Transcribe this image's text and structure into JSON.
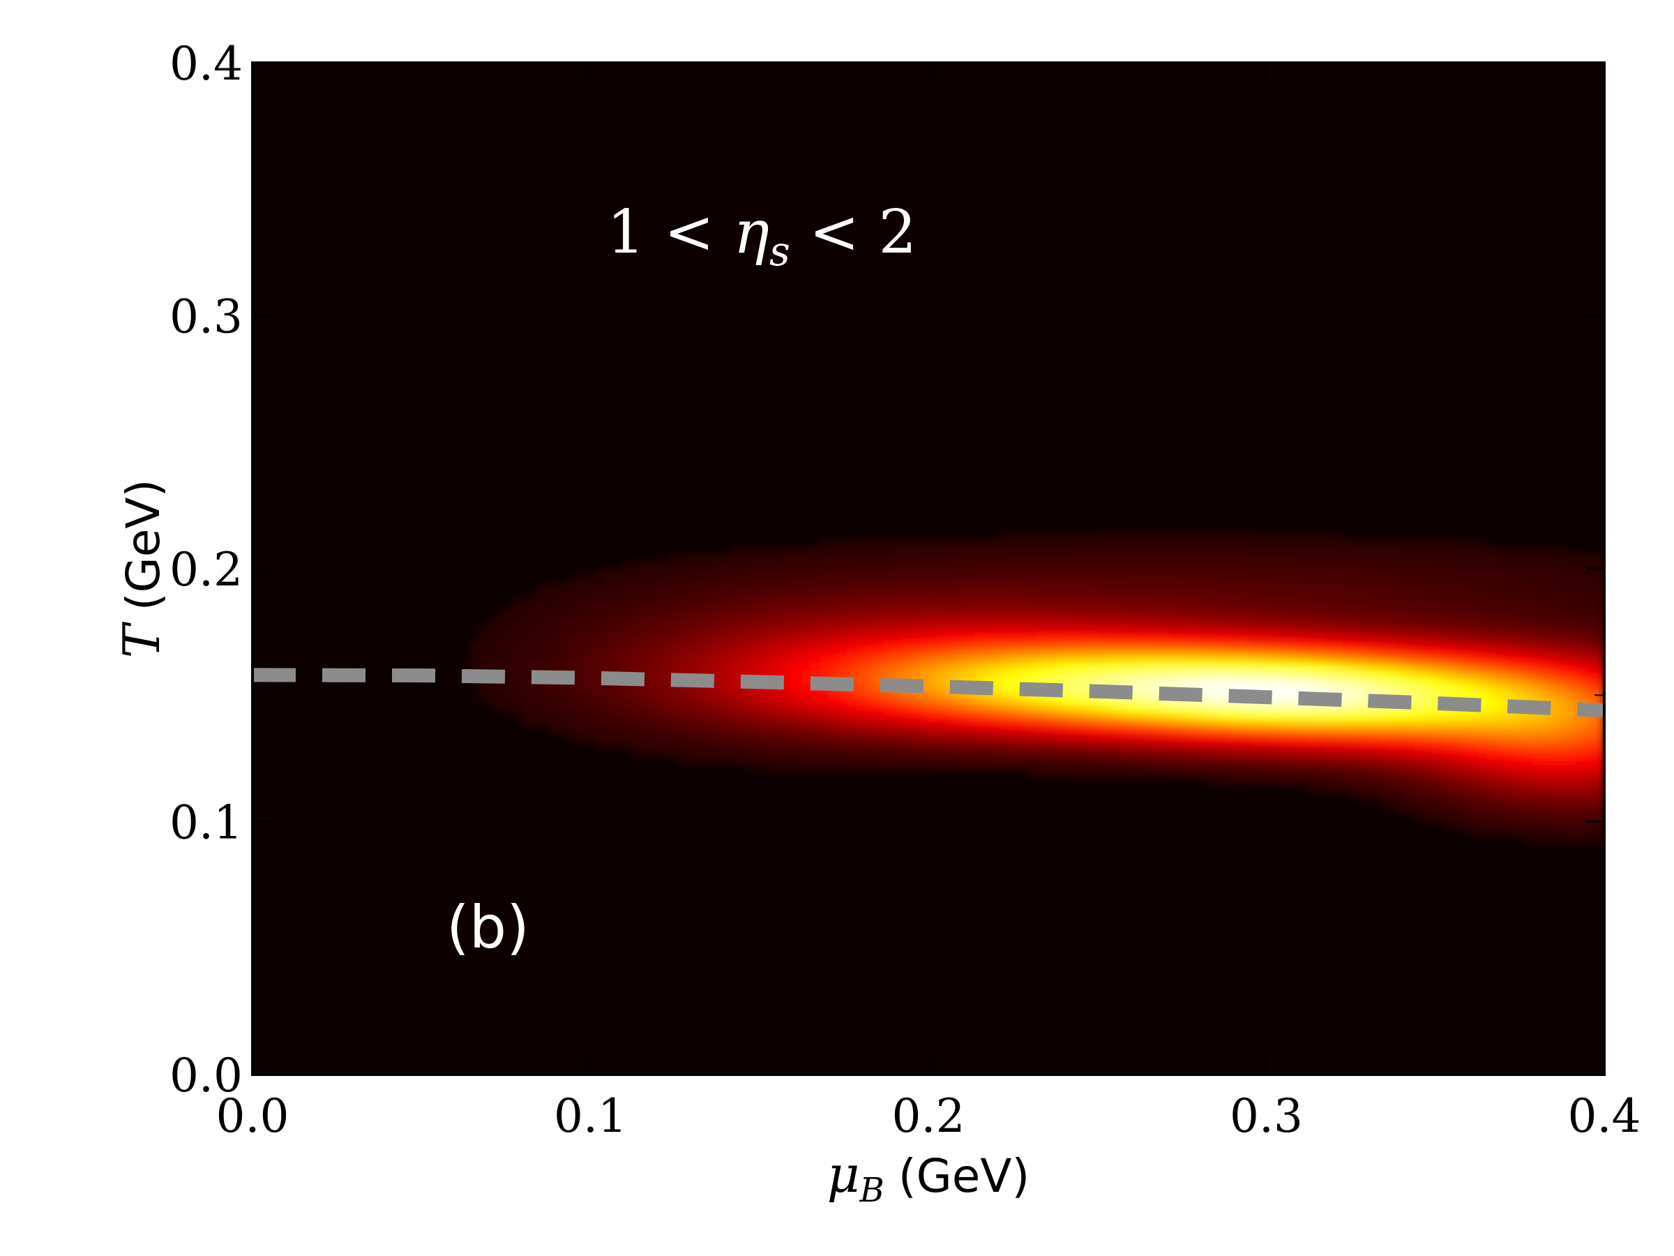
{
  "chart_data": {
    "type": "heatmap",
    "title": "",
    "xlabel_symbol": "μ",
    "xlabel_subscript": "B",
    "xlabel_unit": "(GeV)",
    "ylabel_symbol": "T",
    "ylabel_unit": "(GeV)",
    "xlim": [
      0.0,
      0.4
    ],
    "ylim": [
      0.0,
      0.4
    ],
    "x_ticks": [
      "0.0",
      "0.1",
      "0.2",
      "0.3",
      "0.4"
    ],
    "y_ticks": [
      "0.0",
      "0.1",
      "0.2",
      "0.3",
      "0.4"
    ],
    "x_tick_values": [
      0.0,
      0.1,
      0.2,
      0.3,
      0.4
    ],
    "y_tick_values": [
      0.0,
      0.1,
      0.2,
      0.3,
      0.4
    ],
    "colormap": "hot",
    "background_color": "#0c0000",
    "annotation": {
      "lhs": "1 < ",
      "symbol": "η",
      "subscript": "s",
      "rhs": " < 2"
    },
    "panel_label": "(b)",
    "density_blobs": [
      {
        "mu": 0.28,
        "t": 0.153,
        "sigma_mu": 0.055,
        "sigma_t": 0.012,
        "weight": 1.0
      },
      {
        "mu": 0.33,
        "t": 0.148,
        "sigma_mu": 0.045,
        "sigma_t": 0.013,
        "weight": 0.85
      },
      {
        "mu": 0.22,
        "t": 0.158,
        "sigma_mu": 0.05,
        "sigma_t": 0.014,
        "weight": 0.55
      },
      {
        "mu": 0.39,
        "t": 0.135,
        "sigma_mu": 0.03,
        "sigma_t": 0.018,
        "weight": 0.6
      },
      {
        "mu": 0.16,
        "t": 0.16,
        "sigma_mu": 0.05,
        "sigma_t": 0.02,
        "weight": 0.18
      },
      {
        "mu": 0.28,
        "t": 0.19,
        "sigma_mu": 0.1,
        "sigma_t": 0.015,
        "weight": 0.12
      }
    ],
    "freezeout_curve": {
      "style": "dashed",
      "color": "#8c8c8c",
      "mu": [
        0.0,
        0.05,
        0.1,
        0.15,
        0.2,
        0.25,
        0.3,
        0.35,
        0.4
      ],
      "t": [
        0.158,
        0.1578,
        0.1568,
        0.1552,
        0.1535,
        0.1515,
        0.1492,
        0.1468,
        0.144
      ]
    }
  }
}
